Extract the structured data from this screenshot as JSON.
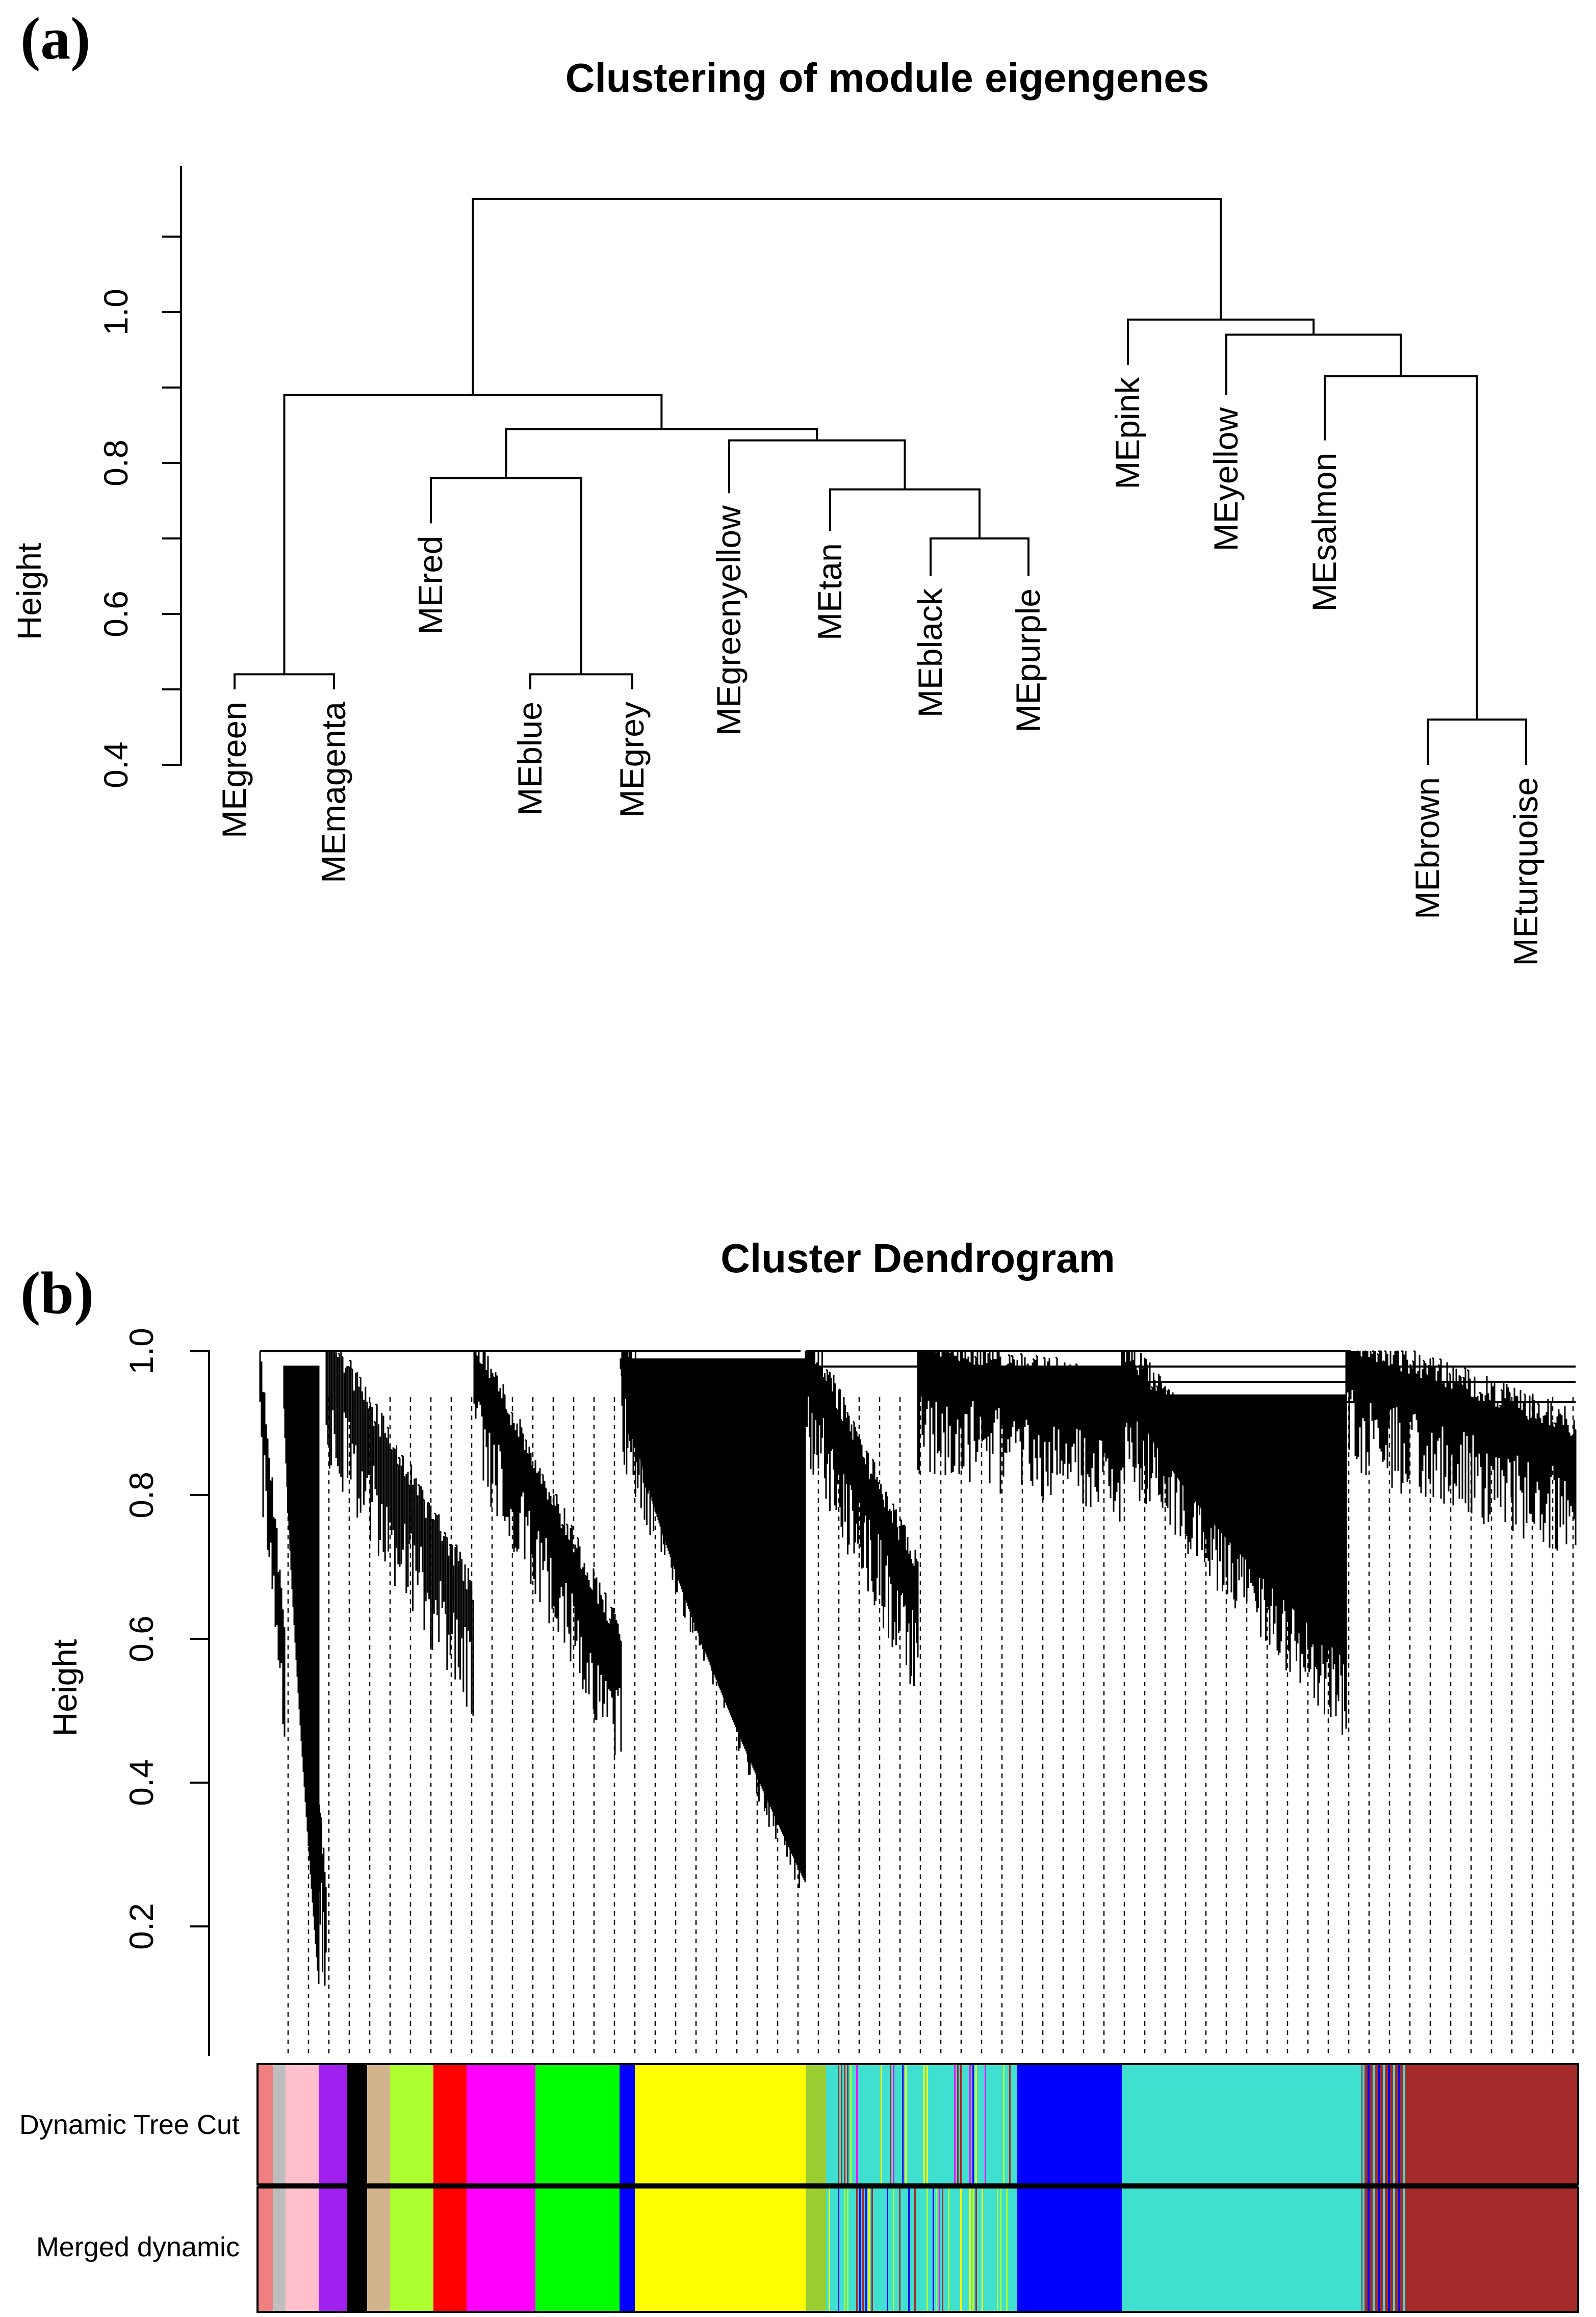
{
  "panels": {
    "a": {
      "label": "(a)",
      "title": "Clustering of module eigengenes",
      "ylabel": "Height"
    },
    "b": {
      "label": "(b)",
      "title": "Cluster Dendrogram",
      "ylabel": "Height",
      "row_labels": [
        "Dynamic Tree Cut",
        "Merged dynamic"
      ]
    }
  },
  "chart_data": [
    {
      "type": "dendrogram",
      "title": "Clustering of module eigengenes",
      "ylabel": "Height",
      "ylim": [
        0.4,
        1.2
      ],
      "yticks": [
        {
          "v": 0.4,
          "label": "0.4"
        },
        {
          "v": 0.6,
          "label": "0.6"
        },
        {
          "v": 0.8,
          "label": "0.8"
        },
        {
          "v": 1.0,
          "label": "1.0"
        }
      ],
      "leaves": [
        {
          "name": "MEgreen",
          "tip": 0.5
        },
        {
          "name": "MEmagenta",
          "tip": 0.5
        },
        {
          "name": "MEred",
          "tip": 0.72
        },
        {
          "name": "MEblue",
          "tip": 0.5
        },
        {
          "name": "MEgrey",
          "tip": 0.5
        },
        {
          "name": "MEgreenyellow",
          "tip": 0.76
        },
        {
          "name": "MEtan",
          "tip": 0.71
        },
        {
          "name": "MEblack",
          "tip": 0.65
        },
        {
          "name": "MEpurple",
          "tip": 0.65
        },
        {
          "name": "MEpink",
          "tip": 0.93
        },
        {
          "name": "MEyellow",
          "tip": 0.89
        },
        {
          "name": "MEsalmon",
          "tip": 0.83
        },
        {
          "name": "MEbrown",
          "tip": 0.4
        },
        {
          "name": "MEturquoise",
          "tip": 0.4
        }
      ],
      "merges": [
        {
          "left": "L0",
          "right": "L1",
          "height": 0.52
        },
        {
          "left": "L3",
          "right": "L4",
          "height": 0.52
        },
        {
          "left": "L7",
          "right": "L8",
          "height": 0.7
        },
        {
          "left": "L12",
          "right": "L13",
          "height": 0.46
        },
        {
          "left": "L6",
          "right": "M2",
          "height": 0.765
        },
        {
          "left": "L2",
          "right": "M1",
          "height": 0.78
        },
        {
          "left": "L5",
          "right": "M4",
          "height": 0.83
        },
        {
          "left": "M5",
          "right": "M6",
          "height": 0.845
        },
        {
          "left": "M0",
          "right": "M7",
          "height": 0.89
        },
        {
          "left": "L11",
          "right": "M3",
          "height": 0.915
        },
        {
          "left": "L10",
          "right": "M9",
          "height": 0.97
        },
        {
          "left": "L9",
          "right": "M10",
          "height": 0.99
        },
        {
          "left": "M8",
          "right": "M11",
          "height": 1.15
        }
      ]
    },
    {
      "type": "dendrogram",
      "title": "Cluster Dendrogram",
      "ylabel": "Height",
      "ylim": [
        0.05,
        1.0
      ],
      "yticks": [
        {
          "v": 0.2,
          "label": "0.2"
        },
        {
          "v": 0.4,
          "label": "0.4"
        },
        {
          "v": 0.6,
          "label": "0.6"
        },
        {
          "v": 0.8,
          "label": "0.8"
        },
        {
          "v": 1.0,
          "label": "1.0"
        }
      ],
      "module_colors": {
        "Dynamic Tree Cut": [
          "#f08080",
          "#bebebe",
          "#ffc0cb",
          "#a020f0",
          "#000000",
          "#d2b48c",
          "#adff2f",
          "#ff0000",
          "#ff00ff",
          "#00ff00",
          "#0000ff",
          "#ffff00",
          "#9acd32",
          "#40e0d0",
          "#0000ff",
          "#40e0d0",
          "#a52a2a"
        ],
        "Merged dynamic": [
          "#f08080",
          "#bebebe",
          "#ffc0cb",
          "#a020f0",
          "#000000",
          "#d2b48c",
          "#adff2f",
          "#ff0000",
          "#ff00ff",
          "#00ff00",
          "#0000ff",
          "#ffff00",
          "#9acd32",
          "#40e0d0",
          "#0000ff",
          "#40e0d0",
          "#a52a2a"
        ]
      }
    }
  ]
}
